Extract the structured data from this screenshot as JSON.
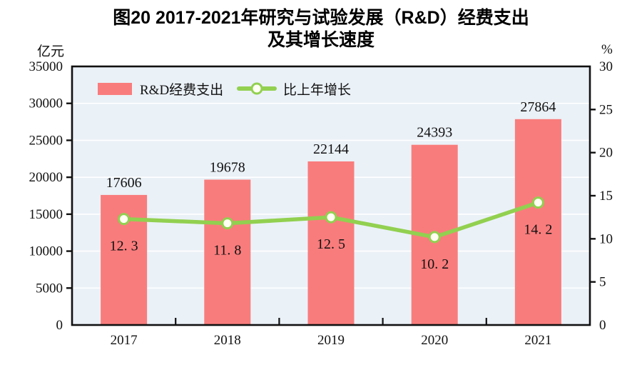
{
  "title": {
    "line1": "图20  2017-2021年研究与试验发展（R&D）经费支出",
    "line2": "及其增长速度"
  },
  "chart_data": {
    "type": "bar",
    "subtype": "bar-line-combo",
    "title": "图20 2017-2021年研究与试验发展（R&D）经费支出及其增长速度",
    "categories": [
      "2017",
      "2018",
      "2019",
      "2020",
      "2021"
    ],
    "series": [
      {
        "name": "R&D经费支出",
        "type": "bar",
        "axis": "left",
        "color": "#F97C7C",
        "values": [
          17606,
          19678,
          22144,
          24393,
          27864
        ],
        "value_labels": [
          "17606",
          "19678",
          "22144",
          "24393",
          "27864"
        ]
      },
      {
        "name": "比上年增长",
        "type": "line",
        "axis": "right",
        "color": "#92D050",
        "marker": "circle-white-fill-green-stroke",
        "values": [
          12.3,
          11.8,
          12.5,
          10.2,
          14.2
        ],
        "value_labels": [
          "12. 3",
          "11. 8",
          "12. 5",
          "10. 2",
          "14. 2"
        ]
      }
    ],
    "left_axis": {
      "unit": "亿元",
      "min": 0,
      "max": 35000,
      "step": 5000,
      "ticks": [
        "0",
        "5000",
        "10000",
        "15000",
        "20000",
        "25000",
        "30000",
        "35000"
      ]
    },
    "right_axis": {
      "unit": "%",
      "min": 0,
      "max": 30,
      "step": 5,
      "ticks": [
        "0",
        "5",
        "10",
        "15",
        "20",
        "25",
        "30"
      ]
    },
    "legend": {
      "position": "top-left-inside",
      "items": [
        "R&D经费支出",
        "比上年增长"
      ]
    },
    "style": {
      "plot_bg": "#EAF1F7",
      "grid_color": "#FFFFFF",
      "axis_color": "#111111",
      "bar_color": "#F97C7C",
      "line_color": "#92D050",
      "marker_fill": "#FFFFF4",
      "grid": "horizontal white lines at left-axis 5000 steps"
    }
  }
}
